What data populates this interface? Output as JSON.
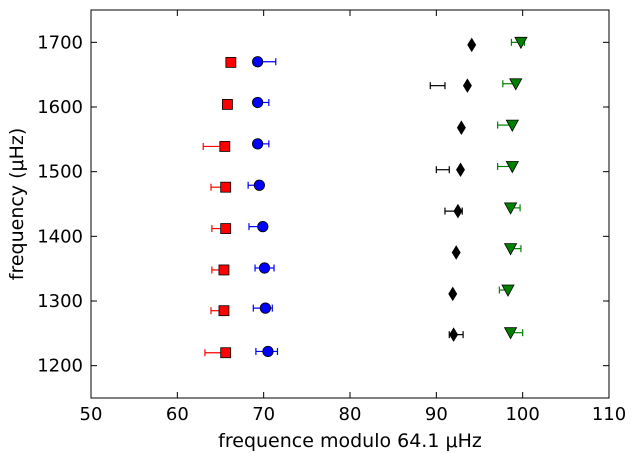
{
  "chart_data": {
    "type": "scatter",
    "xlabel": "frequence modulo 64.1 μHz",
    "ylabel": "frequency (μHz)",
    "xlim": [
      50,
      110
    ],
    "ylim": [
      1150,
      1750
    ],
    "xticks": [
      50,
      60,
      70,
      80,
      90,
      100,
      110
    ],
    "yticks": [
      1200,
      1300,
      1400,
      1500,
      1600,
      1700
    ],
    "grid": false,
    "series": [
      {
        "marker": "square",
        "color": "#ff0000",
        "points": [
          {
            "x": 66.2,
            "y": 1669,
            "xerr": null
          },
          {
            "x": 65.8,
            "y": 1604,
            "xerr": null
          },
          {
            "x": 65.5,
            "y": 1539,
            "xerr": [
              63.0,
              65.5
            ]
          },
          {
            "x": 65.6,
            "y": 1476,
            "xerr": [
              63.9,
              65.6
            ]
          },
          {
            "x": 65.6,
            "y": 1412,
            "xerr": [
              64.0,
              65.6
            ]
          },
          {
            "x": 65.4,
            "y": 1348,
            "xerr": [
              64.0,
              65.4
            ]
          },
          {
            "x": 65.4,
            "y": 1285,
            "xerr": [
              63.9,
              65.4
            ]
          },
          {
            "x": 65.6,
            "y": 1220,
            "xerr": [
              63.2,
              65.6
            ]
          }
        ]
      },
      {
        "marker": "circle",
        "color": "#0000ff",
        "points": [
          {
            "x": 69.3,
            "y": 1670,
            "xerr": [
              69.3,
              71.4
            ]
          },
          {
            "x": 69.3,
            "y": 1607,
            "xerr": [
              69.3,
              70.6
            ]
          },
          {
            "x": 69.3,
            "y": 1543,
            "xerr": [
              69.3,
              70.6
            ]
          },
          {
            "x": 69.5,
            "y": 1479,
            "xerr": [
              68.2,
              69.5
            ]
          },
          {
            "x": 69.9,
            "y": 1415,
            "xerr": [
              68.3,
              69.9
            ]
          },
          {
            "x": 70.1,
            "y": 1351,
            "xerr": [
              69.0,
              71.2
            ]
          },
          {
            "x": 70.2,
            "y": 1289,
            "xerr": [
              68.8,
              71.0
            ]
          },
          {
            "x": 70.5,
            "y": 1222,
            "xerr": [
              69.1,
              71.6
            ]
          }
        ]
      },
      {
        "marker": "thin_diamond",
        "color": "#000000",
        "points": [
          {
            "x": 94.1,
            "y": 1696,
            "xerr": null
          },
          {
            "x": 93.6,
            "y": 1633,
            "xerr": [
              89.3,
              91.0
            ]
          },
          {
            "x": 92.9,
            "y": 1568,
            "xerr": null
          },
          {
            "x": 92.8,
            "y": 1503,
            "xerr": [
              90.0,
              91.5
            ]
          },
          {
            "x": 92.5,
            "y": 1439,
            "xerr": [
              91.0,
              93.0
            ]
          },
          {
            "x": 92.3,
            "y": 1375,
            "xerr": null
          },
          {
            "x": 91.9,
            "y": 1311,
            "xerr": null
          },
          {
            "x": 92.0,
            "y": 1248,
            "xerr": [
              91.5,
              93.1
            ]
          }
        ]
      },
      {
        "marker": "triangle_down",
        "color": "#008000",
        "points": [
          {
            "x": 99.8,
            "y": 1700,
            "xerr": [
              98.7,
              100.2
            ]
          },
          {
            "x": 99.2,
            "y": 1636,
            "xerr": [
              97.7,
              99.2
            ]
          },
          {
            "x": 98.8,
            "y": 1572,
            "xerr": [
              97.1,
              98.8
            ]
          },
          {
            "x": 98.8,
            "y": 1508,
            "xerr": [
              97.1,
              98.8
            ]
          },
          {
            "x": 98.6,
            "y": 1444,
            "xerr": [
              98.6,
              99.7
            ]
          },
          {
            "x": 98.6,
            "y": 1381,
            "xerr": [
              98.6,
              99.8
            ]
          },
          {
            "x": 98.3,
            "y": 1317,
            "xerr": [
              97.3,
              98.3
            ]
          },
          {
            "x": 98.6,
            "y": 1251,
            "xerr": [
              98.6,
              100.0
            ]
          }
        ]
      }
    ]
  }
}
